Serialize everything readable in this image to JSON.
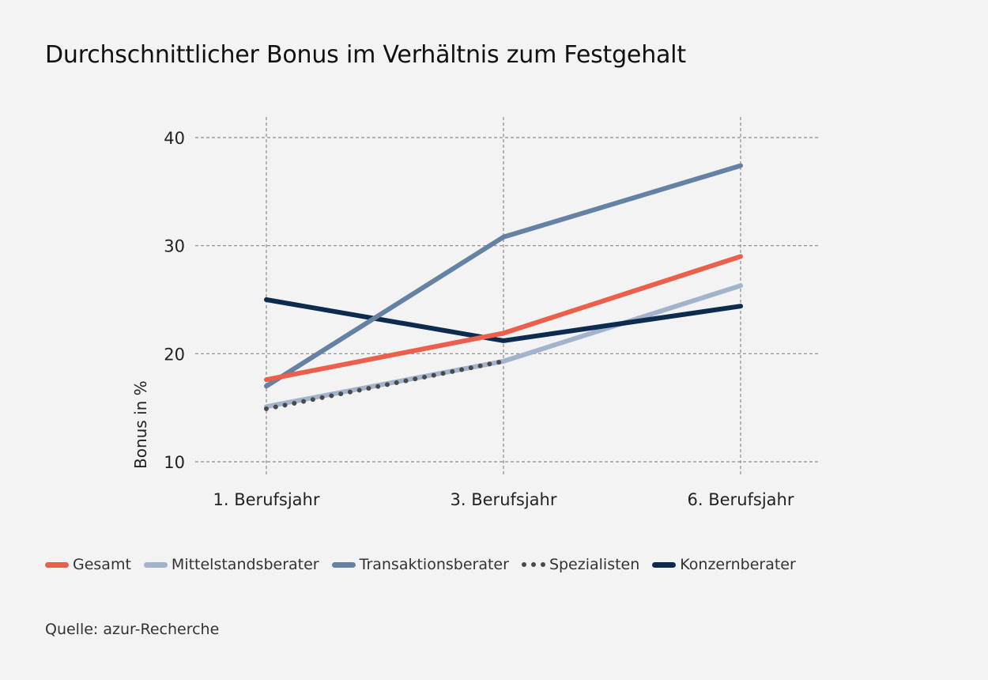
{
  "title": "Durchschnittlicher Bonus im Verhältnis zum Festgehalt",
  "source": "Quelle: azur-Recherche",
  "chart_data": {
    "type": "line",
    "title": "Durchschnittlicher Bonus im Verhältnis zum Festgehalt",
    "xlabel": "",
    "ylabel": "Bonus in %",
    "categories": [
      "1. Berufsjahr",
      "3. Berufsjahr",
      "6. Berufsjahr"
    ],
    "yticks": [
      10,
      20,
      30,
      40
    ],
    "ytick_labels": [
      "10",
      "20",
      "30",
      "40"
    ],
    "ylim": [
      10,
      40
    ],
    "grid": true,
    "legend_position": "bottom-left",
    "series": [
      {
        "name": "Gesamt",
        "color": "#ec5f4b",
        "style": "solid",
        "values": [
          17.6,
          21.9,
          29.0
        ]
      },
      {
        "name": "Mittelstandsberater",
        "color": "#a2b3cc",
        "style": "solid",
        "values": [
          15.1,
          19.3,
          26.3
        ]
      },
      {
        "name": "Transaktionsberater",
        "color": "#6581a4",
        "style": "solid",
        "values": [
          17.0,
          30.8,
          37.4
        ]
      },
      {
        "name": "Spezialisten",
        "color": "#4a4a4a",
        "style": "dotted",
        "values": [
          14.9,
          19.3,
          null
        ]
      },
      {
        "name": "Konzernberater",
        "color": "#0d2b4e",
        "style": "solid",
        "values": [
          25.0,
          21.2,
          24.4
        ]
      }
    ]
  }
}
